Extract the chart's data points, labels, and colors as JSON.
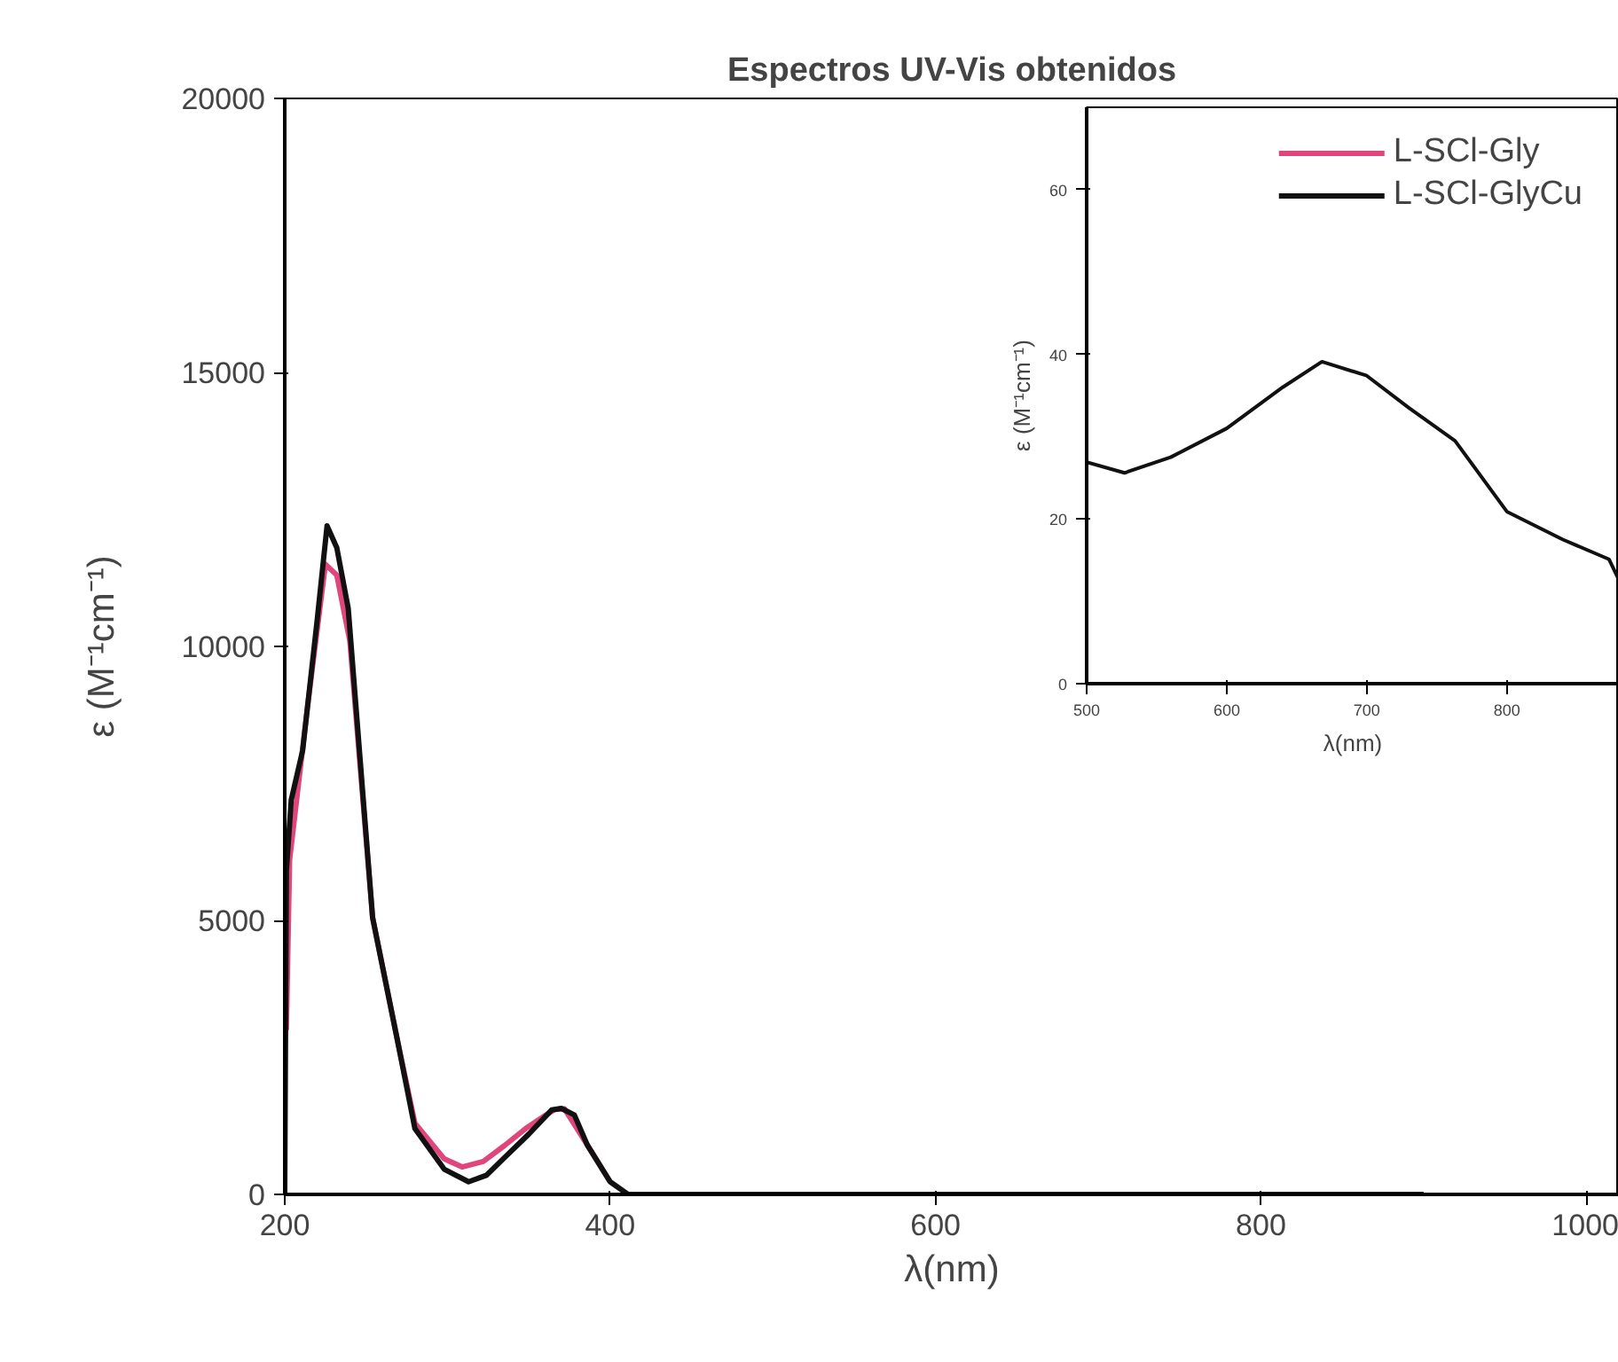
{
  "chart_data": [
    {
      "type": "line",
      "title": "Espectros UV-Vis obtenidos",
      "xlabel": "λ(nm)",
      "ylabel": "ε (M⁻¹cm⁻¹)",
      "xlim": [
        200,
        1020
      ],
      "ylim": [
        0,
        20000
      ],
      "xticks": [
        200,
        400,
        600,
        800,
        1000
      ],
      "yticks": [
        0,
        5000,
        10000,
        15000,
        20000
      ],
      "legend": "top right",
      "grid": false,
      "series": [
        {
          "name": "L-SCl-Gly",
          "color": "#e0457b",
          "x": [
            201,
            203,
            214,
            225,
            232,
            240,
            254,
            269,
            280,
            298,
            309,
            322,
            335,
            348,
            360,
            366,
            372,
            386,
            400
          ],
          "values": [
            3000,
            6100,
            8900,
            11500,
            11300,
            10100,
            5050,
            2850,
            1300,
            650,
            500,
            600,
            890,
            1200,
            1440,
            1550,
            1560,
            900,
            230
          ]
        },
        {
          "name": "L-SCl-GlyCu",
          "color": "#111111",
          "x": [
            200,
            201,
            204,
            211,
            220,
            226,
            232,
            239,
            254,
            269,
            280,
            298,
            313,
            324,
            335,
            350,
            364,
            370,
            378,
            386,
            400,
            411,
            430,
            500,
            700,
            900
          ],
          "values": [
            0,
            5900,
            7200,
            8100,
            10500,
            12200,
            11800,
            10700,
            5050,
            2850,
            1200,
            460,
            230,
            350,
            670,
            1100,
            1540,
            1570,
            1450,
            900,
            230,
            0,
            0,
            0,
            0,
            0
          ]
        }
      ]
    },
    {
      "type": "line",
      "xlabel": "λ(nm)",
      "ylabel": "ε (M⁻¹cm⁻¹)",
      "xlim": [
        500,
        880
      ],
      "ylim": [
        0,
        70
      ],
      "xticks": [
        500,
        600,
        700,
        800
      ],
      "yticks": [
        0,
        20,
        40,
        60
      ],
      "grid": false,
      "series": [
        {
          "color": "#111111",
          "x": [
            500,
            527,
            560,
            600,
            640,
            668,
            700,
            730,
            763,
            800,
            840,
            873,
            880
          ],
          "values": [
            26.9,
            25.6,
            27.5,
            31.0,
            36.0,
            39.1,
            37.4,
            33.5,
            29.5,
            20.9,
            17.5,
            15.1,
            12.6
          ]
        }
      ]
    }
  ]
}
